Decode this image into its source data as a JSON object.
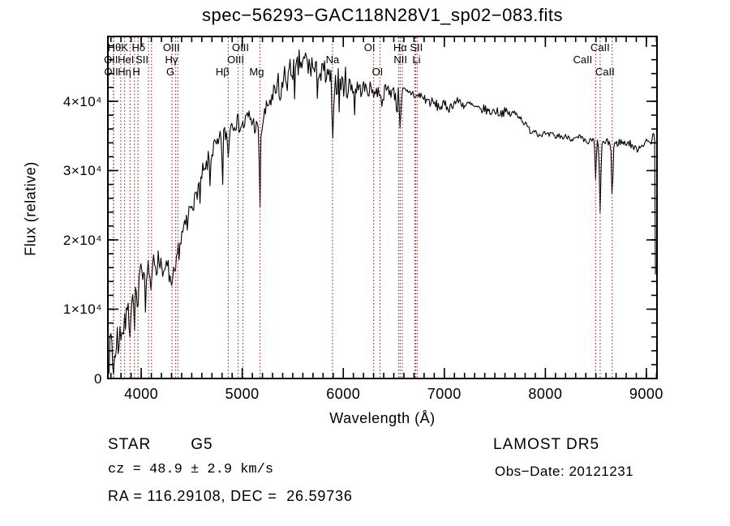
{
  "title": "spec−56293−GAC118N28V1_sp02−083.fits",
  "colors": {
    "background": "#ffffff",
    "spectrum": "#000000",
    "line_marker": "#993333",
    "text": "#000000"
  },
  "info": {
    "class_label": "STAR",
    "subclass": "G5",
    "cz_line": "cz = 48.9 ± 2.9 km/s",
    "radec_line": "RA = 116.29108, DEC =  26.59736",
    "survey": "LAMOST DR5",
    "obsdate_line": "Obs−Date: 20121231"
  },
  "chart_data": {
    "type": "line",
    "title": "spec−56293−GAC118N28V1_sp02−083.fits",
    "xlabel": "Wavelength (Å)",
    "ylabel": "Flux (relative)",
    "xlim": [
      3670,
      9105
    ],
    "ylim": [
      0,
      49350
    ],
    "grid": false,
    "x_major_ticks": [
      4000,
      5000,
      6000,
      7000,
      8000,
      9000
    ],
    "x_tick_labels": [
      "4000",
      "5000",
      "6000",
      "7000",
      "8000",
      "9000"
    ],
    "x_minor_step": 100,
    "y_major_ticks": [
      0,
      10000,
      20000,
      30000,
      40000
    ],
    "y_tick_labels": [
      "0",
      "1×10⁴",
      "2×10⁴",
      "3×10⁴",
      "4×10⁴"
    ],
    "y_minor_step": 2000,
    "series": [
      {
        "name": "spectrum",
        "sample_step": 9,
        "noise_seed": 7,
        "envelope_points": [
          [
            3682,
            2500
          ],
          [
            3690,
            8200
          ],
          [
            3698,
            4200
          ],
          [
            3706,
            6500
          ],
          [
            3714,
            1800
          ],
          [
            3722,
            1200
          ],
          [
            3730,
            700
          ],
          [
            3740,
            5200
          ],
          [
            3750,
            2800
          ],
          [
            3762,
            6800
          ],
          [
            3774,
            4000
          ],
          [
            3786,
            7200
          ],
          [
            3798,
            5200
          ],
          [
            3810,
            8200
          ],
          [
            3822,
            6200
          ],
          [
            3835,
            9300
          ],
          [
            3848,
            7200
          ],
          [
            3862,
            10800
          ],
          [
            3876,
            8800
          ],
          [
            3889,
            7200
          ],
          [
            3902,
            11500
          ],
          [
            3915,
            12500
          ],
          [
            3930,
            11200
          ],
          [
            3945,
            13800
          ],
          [
            3960,
            12500
          ],
          [
            3975,
            14200
          ],
          [
            3990,
            15800
          ],
          [
            4005,
            14200
          ],
          [
            4020,
            16800
          ],
          [
            4040,
            15200
          ],
          [
            4060,
            16600
          ],
          [
            4080,
            15400
          ],
          [
            4101,
            15000
          ],
          [
            4125,
            17400
          ],
          [
            4150,
            16200
          ],
          [
            4175,
            17200
          ],
          [
            4200,
            16800
          ],
          [
            4225,
            16000
          ],
          [
            4250,
            15800
          ],
          [
            4275,
            15400
          ],
          [
            4305,
            14400
          ],
          [
            4330,
            16200
          ],
          [
            4355,
            17800
          ],
          [
            4380,
            19200
          ],
          [
            4405,
            20800
          ],
          [
            4430,
            21500
          ],
          [
            4455,
            23200
          ],
          [
            4480,
            24500
          ],
          [
            4505,
            25800
          ],
          [
            4530,
            25400
          ],
          [
            4555,
            27200
          ],
          [
            4580,
            28400
          ],
          [
            4605,
            29800
          ],
          [
            4630,
            29400
          ],
          [
            4655,
            31200
          ],
          [
            4680,
            31800
          ],
          [
            4705,
            32800
          ],
          [
            4730,
            33600
          ],
          [
            4755,
            33200
          ],
          [
            4780,
            34400
          ],
          [
            4805,
            35400
          ],
          [
            4830,
            35200
          ],
          [
            4861,
            36000
          ],
          [
            4890,
            36800
          ],
          [
            4920,
            37200
          ],
          [
            4950,
            37000
          ],
          [
            4980,
            36600
          ],
          [
            5010,
            36400
          ],
          [
            5040,
            37400
          ],
          [
            5070,
            37800
          ],
          [
            5100,
            37000
          ],
          [
            5140,
            36200
          ],
          [
            5175,
            35000
          ],
          [
            5210,
            37600
          ],
          [
            5240,
            38800
          ],
          [
            5270,
            40200
          ],
          [
            5300,
            39800
          ],
          [
            5330,
            41200
          ],
          [
            5360,
            42400
          ],
          [
            5390,
            41800
          ],
          [
            5420,
            43600
          ],
          [
            5450,
            43200
          ],
          [
            5480,
            44400
          ],
          [
            5510,
            45200
          ],
          [
            5540,
            44200
          ],
          [
            5570,
            45800
          ],
          [
            5600,
            45000
          ],
          [
            5630,
            46200
          ],
          [
            5660,
            44600
          ],
          [
            5690,
            45400
          ],
          [
            5720,
            43800
          ],
          [
            5750,
            45000
          ],
          [
            5780,
            43400
          ],
          [
            5810,
            44400
          ],
          [
            5840,
            42800
          ],
          [
            5870,
            43600
          ],
          [
            5900,
            43000
          ],
          [
            5930,
            42600
          ],
          [
            5960,
            43200
          ],
          [
            5990,
            42200
          ],
          [
            6020,
            43000
          ],
          [
            6050,
            41800
          ],
          [
            6080,
            42600
          ],
          [
            6110,
            41400
          ],
          [
            6140,
            42200
          ],
          [
            6170,
            41600
          ],
          [
            6200,
            42000
          ],
          [
            6240,
            41600
          ],
          [
            6280,
            41800
          ],
          [
            6320,
            41200
          ],
          [
            6360,
            41600
          ],
          [
            6400,
            41200
          ],
          [
            6440,
            41800
          ],
          [
            6480,
            41400
          ],
          [
            6520,
            41000
          ],
          [
            6563,
            41200
          ],
          [
            6600,
            41400
          ],
          [
            6640,
            41000
          ],
          [
            6680,
            41300
          ],
          [
            6720,
            40600
          ],
          [
            6760,
            40900
          ],
          [
            6800,
            40400
          ],
          [
            6850,
            40000
          ],
          [
            6900,
            39600
          ],
          [
            6950,
            39200
          ],
          [
            7000,
            39400
          ],
          [
            7050,
            39100
          ],
          [
            7100,
            39800
          ],
          [
            7150,
            40100
          ],
          [
            7200,
            39300
          ],
          [
            7250,
            39600
          ],
          [
            7300,
            39100
          ],
          [
            7350,
            38700
          ],
          [
            7400,
            38900
          ],
          [
            7450,
            38400
          ],
          [
            7500,
            38700
          ],
          [
            7550,
            38300
          ],
          [
            7600,
            38500
          ],
          [
            7650,
            38100
          ],
          [
            7700,
            38300
          ],
          [
            7740,
            37900
          ],
          [
            7780,
            37100
          ],
          [
            7820,
            36300
          ],
          [
            7860,
            35600
          ],
          [
            7900,
            35900
          ],
          [
            7940,
            35100
          ],
          [
            7980,
            35400
          ],
          [
            8020,
            35000
          ],
          [
            8060,
            35200
          ],
          [
            8100,
            34800
          ],
          [
            8140,
            35100
          ],
          [
            8180,
            34700
          ],
          [
            8220,
            35000
          ],
          [
            8260,
            34600
          ],
          [
            8300,
            34500
          ],
          [
            8340,
            34800
          ],
          [
            8380,
            34300
          ],
          [
            8420,
            34000
          ],
          [
            8460,
            34400
          ],
          [
            8500,
            34200
          ],
          [
            8542,
            34000
          ],
          [
            8580,
            33900
          ],
          [
            8620,
            34100
          ],
          [
            8662,
            33900
          ],
          [
            8700,
            33800
          ],
          [
            8740,
            34200
          ],
          [
            8780,
            33900
          ],
          [
            8820,
            34100
          ],
          [
            8860,
            33600
          ],
          [
            8900,
            33000
          ],
          [
            8940,
            33600
          ],
          [
            8980,
            34000
          ],
          [
            9020,
            34100
          ],
          [
            9050,
            34300
          ],
          [
            9070,
            35600
          ],
          [
            9082,
            34000
          ],
          [
            9090,
            15000
          ]
        ],
        "noise_segments": [
          [
            3682,
            4400,
            1800
          ],
          [
            4400,
            5300,
            1400
          ],
          [
            5300,
            6080,
            2100
          ],
          [
            6080,
            6560,
            1100
          ],
          [
            6560,
            7050,
            800
          ],
          [
            7050,
            7720,
            650
          ],
          [
            7720,
            8460,
            450
          ],
          [
            8460,
            9100,
            550
          ]
        ],
        "absorption_dips": [
          [
            3933,
            3500,
            12
          ],
          [
            3968,
            3800,
            12
          ],
          [
            4042,
            5500,
            5
          ],
          [
            4101,
            2800,
            10
          ],
          [
            4227,
            3500,
            5
          ],
          [
            4305,
            2500,
            14
          ],
          [
            4340,
            3000,
            9
          ],
          [
            4460,
            4500,
            4
          ],
          [
            4585,
            5500,
            5
          ],
          [
            4680,
            4500,
            4
          ],
          [
            4805,
            8500,
            6
          ],
          [
            4861,
            4200,
            9
          ],
          [
            5175,
            10000,
            8
          ],
          [
            5370,
            5000,
            5
          ],
          [
            5520,
            7500,
            5
          ],
          [
            5740,
            5000,
            4
          ],
          [
            5893,
            11000,
            9
          ],
          [
            5960,
            4000,
            4
          ],
          [
            6110,
            4200,
            4
          ],
          [
            6380,
            3800,
            4
          ],
          [
            6530,
            3300,
            6
          ],
          [
            6563,
            4600,
            9
          ],
          [
            8498,
            5800,
            8
          ],
          [
            8542,
            10500,
            9
          ],
          [
            8662,
            8000,
            9
          ]
        ]
      }
    ],
    "spectral_lines": {
      "marker_wavelengths": [
        3725,
        3727,
        3798,
        3835,
        3889,
        3933,
        3968,
        4072,
        4102,
        4305,
        4340,
        4363,
        4861,
        4959,
        5007,
        5175,
        5893,
        6300,
        6363,
        6548,
        6563,
        6583,
        6708,
        6716,
        6731,
        8498,
        8542,
        8662
      ],
      "labels": [
        {
          "text": "Hθ",
          "wavelength": 3798,
          "row": 1,
          "dx": -8
        },
        {
          "text": "K",
          "wavelength": 3933,
          "row": 1,
          "dx": -12
        },
        {
          "text": "Hδ",
          "wavelength": 4102,
          "row": 1,
          "dx": -16
        },
        {
          "text": "OIII",
          "wavelength": 4363,
          "row": 1,
          "dx": -8
        },
        {
          "text": "OIII",
          "wavelength": 5007,
          "row": 1,
          "dx": -3
        },
        {
          "text": "OI",
          "wavelength": 6300,
          "row": 1,
          "dx": -5
        },
        {
          "text": "Hα",
          "wavelength": 6563,
          "row": 1,
          "dx": 0
        },
        {
          "text": "SII",
          "wavelength": 6723,
          "row": 1,
          "dx": 0
        },
        {
          "text": "CaII",
          "wavelength": 8542,
          "row": 1,
          "dx": 0
        },
        {
          "text": "OII",
          "wavelength": 3725,
          "row": 2,
          "dx": -3
        },
        {
          "text": "HeI",
          "wavelength": 3889,
          "row": 2,
          "dx": -5
        },
        {
          "text": "SII",
          "wavelength": 4072,
          "row": 2,
          "dx": -8
        },
        {
          "text": "Hγ",
          "wavelength": 4340,
          "row": 2,
          "dx": -5
        },
        {
          "text": "OIII",
          "wavelength": 4959,
          "row": 2,
          "dx": -3
        },
        {
          "text": "Na",
          "wavelength": 5893,
          "row": 2,
          "dx": 0
        },
        {
          "text": "NII",
          "wavelength": 6566,
          "row": 2,
          "dx": 0
        },
        {
          "text": "Li",
          "wavelength": 6708,
          "row": 2,
          "dx": 2
        },
        {
          "text": "CaII",
          "wavelength": 8498,
          "row": 2,
          "dx": -16
        },
        {
          "text": "OII",
          "wavelength": 3727,
          "row": 3,
          "dx": -3
        },
        {
          "text": "Hη",
          "wavelength": 3835,
          "row": 3,
          "dx": 0
        },
        {
          "text": "H",
          "wavelength": 3968,
          "row": 3,
          "dx": -2
        },
        {
          "text": "G",
          "wavelength": 4305,
          "row": 3,
          "dx": -2
        },
        {
          "text": "Hβ",
          "wavelength": 4861,
          "row": 3,
          "dx": -7
        },
        {
          "text": "Mg",
          "wavelength": 5175,
          "row": 3,
          "dx": -4
        },
        {
          "text": "OI",
          "wavelength": 6363,
          "row": 3,
          "dx": -3
        },
        {
          "text": "CaII",
          "wavelength": 8662,
          "row": 3,
          "dx": -9
        }
      ]
    }
  }
}
